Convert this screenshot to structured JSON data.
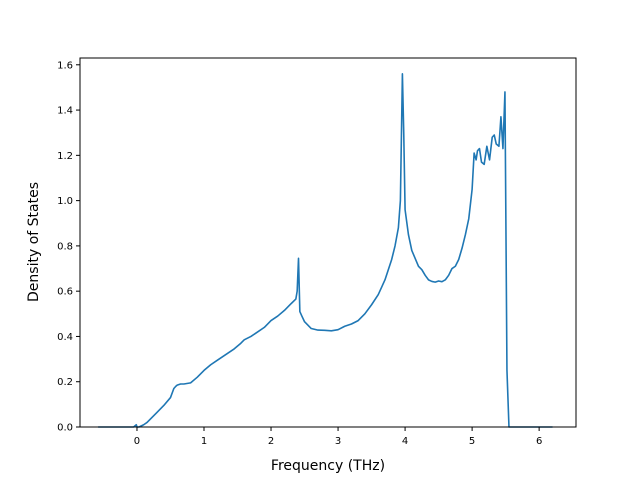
{
  "chart_data": {
    "type": "line",
    "xlabel": "Frequency (THz)",
    "ylabel": "Density of States",
    "xlim": [
      -0.85,
      6.55
    ],
    "ylim": [
      0.0,
      1.63
    ],
    "xticks": [
      0,
      1,
      2,
      3,
      4,
      5,
      6
    ],
    "yticks": [
      0.0,
      0.2,
      0.4,
      0.6,
      0.8,
      1.0,
      1.2,
      1.4,
      1.6
    ],
    "xtick_labels": [
      "0",
      "1",
      "2",
      "3",
      "4",
      "5",
      "6"
    ],
    "ytick_labels": [
      "0.0",
      "0.2",
      "0.4",
      "0.6",
      "0.8",
      "1.0",
      "1.2",
      "1.4",
      "1.6"
    ],
    "grid": false,
    "line_color": "#1f77b4",
    "series": [
      {
        "x": [
          -0.58,
          -0.05,
          -0.01,
          0.0,
          0.03,
          0.1,
          0.15,
          0.2,
          0.3,
          0.4,
          0.5,
          0.55,
          0.58,
          0.6,
          0.65,
          0.7,
          0.8,
          0.9,
          1.0,
          1.1,
          1.2,
          1.25,
          1.35,
          1.45,
          1.55,
          1.6,
          1.7,
          1.8,
          1.9,
          2.0,
          2.1,
          2.2,
          2.3,
          2.37,
          2.39,
          2.41,
          2.43,
          2.46,
          2.5,
          2.6,
          2.7,
          2.8,
          2.9,
          3.0,
          3.1,
          3.2,
          3.3,
          3.4,
          3.5,
          3.6,
          3.7,
          3.8,
          3.85,
          3.9,
          3.93,
          3.96,
          3.98,
          4.0,
          4.05,
          4.1,
          4.2,
          4.25,
          4.3,
          4.35,
          4.4,
          4.45,
          4.5,
          4.55,
          4.6,
          4.65,
          4.7,
          4.75,
          4.8,
          4.85,
          4.9,
          4.95,
          5.0,
          5.03,
          5.06,
          5.08,
          5.11,
          5.14,
          5.18,
          5.22,
          5.26,
          5.3,
          5.33,
          5.36,
          5.4,
          5.43,
          5.46,
          5.49,
          5.52,
          5.55,
          5.58,
          5.6,
          5.62,
          5.64,
          5.67,
          5.75,
          6.2
        ],
        "y": [
          0.0,
          0.0,
          0.01,
          0.0,
          0.0,
          0.01,
          0.02,
          0.035,
          0.065,
          0.095,
          0.13,
          0.17,
          0.18,
          0.185,
          0.19,
          0.19,
          0.195,
          0.22,
          0.25,
          0.275,
          0.295,
          0.305,
          0.325,
          0.345,
          0.37,
          0.385,
          0.4,
          0.42,
          0.44,
          0.47,
          0.49,
          0.515,
          0.545,
          0.565,
          0.6,
          0.745,
          0.51,
          0.49,
          0.465,
          0.435,
          0.428,
          0.427,
          0.425,
          0.43,
          0.445,
          0.455,
          0.47,
          0.5,
          0.54,
          0.585,
          0.65,
          0.74,
          0.8,
          0.88,
          1.0,
          1.56,
          1.3,
          0.96,
          0.85,
          0.78,
          0.71,
          0.695,
          0.67,
          0.65,
          0.643,
          0.64,
          0.645,
          0.642,
          0.65,
          0.67,
          0.7,
          0.71,
          0.74,
          0.79,
          0.85,
          0.92,
          1.05,
          1.21,
          1.18,
          1.22,
          1.23,
          1.17,
          1.16,
          1.24,
          1.18,
          1.28,
          1.29,
          1.25,
          1.24,
          1.37,
          1.23,
          1.48,
          0.25,
          0.0,
          0.0,
          0.0,
          0.0,
          0.0,
          0.0,
          0.0,
          0.0
        ]
      }
    ]
  }
}
